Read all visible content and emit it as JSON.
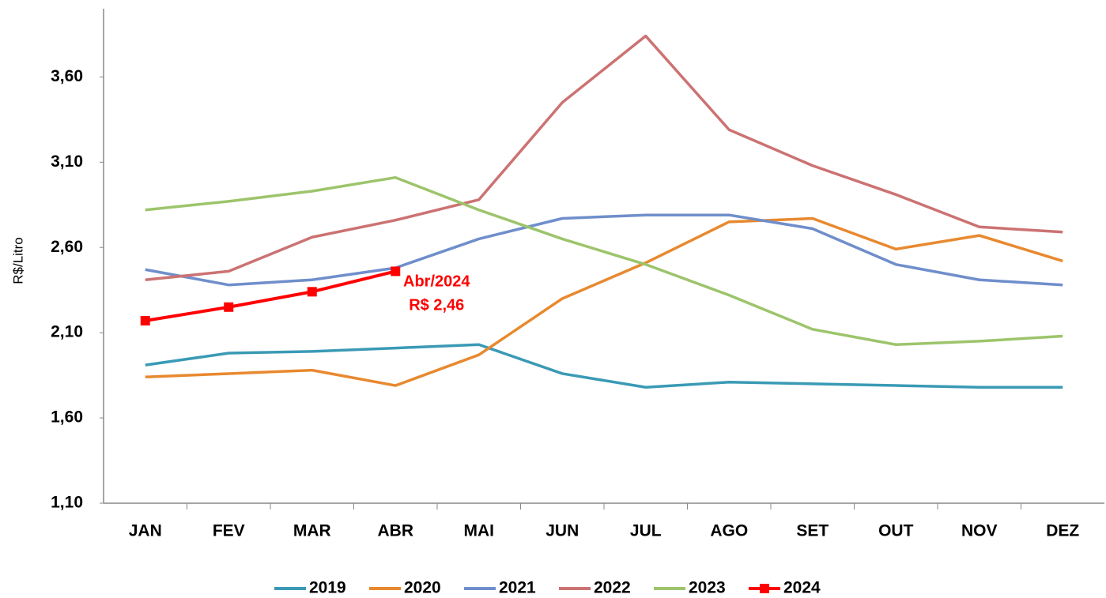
{
  "chart_data": {
    "type": "line",
    "y_label": "R$/Litro",
    "categories": [
      "JAN",
      "FEV",
      "MAR",
      "ABR",
      "MAI",
      "JUN",
      "JUL",
      "AGO",
      "SET",
      "OUT",
      "NOV",
      "DEZ"
    ],
    "series": [
      {
        "name": "2019",
        "color": "#3a9ab5",
        "values": [
          1.91,
          1.98,
          1.99,
          2.01,
          2.03,
          1.86,
          1.78,
          1.81,
          1.8,
          1.79,
          1.78,
          1.78
        ]
      },
      {
        "name": "2020",
        "color": "#e8892f",
        "values": [
          1.84,
          1.86,
          1.88,
          1.79,
          1.97,
          2.3,
          2.51,
          2.75,
          2.77,
          2.59,
          2.67,
          2.52
        ]
      },
      {
        "name": "2021",
        "color": "#6f8ecb",
        "values": [
          2.47,
          2.38,
          2.41,
          2.48,
          2.65,
          2.77,
          2.79,
          2.79,
          2.71,
          2.5,
          2.41,
          2.38
        ]
      },
      {
        "name": "2022",
        "color": "#cc7272",
        "values": [
          2.41,
          2.46,
          2.66,
          2.76,
          2.88,
          3.45,
          3.84,
          3.29,
          3.08,
          2.91,
          2.72,
          2.69
        ]
      },
      {
        "name": "2023",
        "color": "#9dc46b",
        "values": [
          2.82,
          2.87,
          2.93,
          3.01,
          2.82,
          2.65,
          2.5,
          2.32,
          2.12,
          2.03,
          2.05,
          2.08
        ]
      },
      {
        "name": "2024",
        "color": "#ff0000",
        "marker": "square",
        "values": [
          2.17,
          2.25,
          2.34,
          2.46,
          null,
          null,
          null,
          null,
          null,
          null,
          null,
          null
        ]
      }
    ],
    "annotations": [
      "Abr/2024",
      "R$ 2,46"
    ],
    "ylim": [
      1.1,
      4.0
    ],
    "yticks": [
      {
        "value": 1.1,
        "label": "1,10"
      },
      {
        "value": 1.6,
        "label": "1,60"
      },
      {
        "value": 2.1,
        "label": "2,10"
      },
      {
        "value": 2.6,
        "label": "2,60"
      },
      {
        "value": 3.1,
        "label": "3,10"
      },
      {
        "value": 3.6,
        "label": "3,60"
      }
    ],
    "legend": "bottom"
  }
}
